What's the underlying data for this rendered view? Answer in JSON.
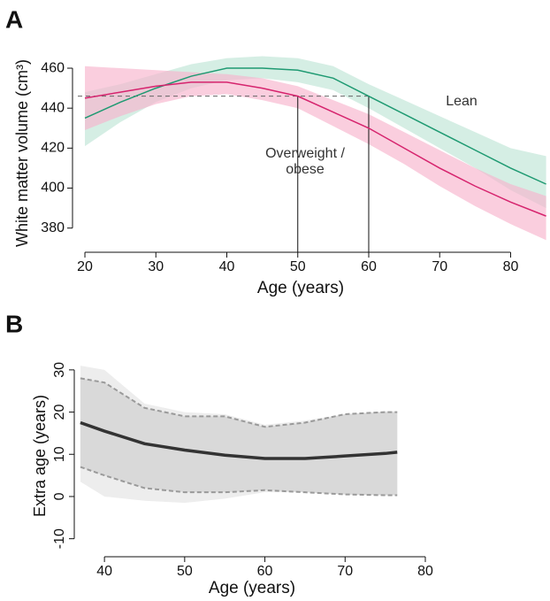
{
  "chart_data": [
    {
      "type": "line",
      "label": "A",
      "xlabel": "Age (years)",
      "ylabel": "White matter volume (cm³)",
      "xlim": [
        19,
        85.3
      ],
      "ylim": [
        371,
        464
      ],
      "xticks": [
        20,
        30,
        40,
        50,
        60,
        70,
        80
      ],
      "yticks": [
        380,
        400,
        420,
        440,
        460
      ],
      "x": [
        20,
        25,
        30,
        35,
        40,
        45,
        50,
        55,
        60,
        65,
        70,
        75,
        80,
        85
      ],
      "series": [
        {
          "name": "Lean",
          "color": "#1f9a72",
          "values": [
            435,
            443,
            450,
            456,
            460,
            460,
            459,
            455,
            446,
            437,
            428,
            419,
            410,
            402
          ],
          "bands": [
            {
              "color": "#bfe5d6",
              "lower": [
                421,
                433,
                443,
                450,
                454,
                455,
                453,
                449,
                440,
                430,
                420,
                410,
                399,
                390
              ],
              "upper": [
                448,
                452,
                457,
                462,
                465,
                466,
                465,
                461,
                452,
                444,
                436,
                428,
                420,
                416
              ]
            }
          ]
        },
        {
          "name": "Overweight / obese",
          "color": "#d6246e",
          "values": [
            445,
            448,
            451,
            453,
            453,
            450,
            446,
            438,
            430,
            420,
            410,
            401,
            393,
            386
          ],
          "bands": [
            {
              "color": "#f7b3cc",
              "lower": [
                429,
                436,
                442,
                446,
                447,
                444,
                440,
                431,
                422,
                412,
                401,
                391,
                382,
                374
              ],
              "upper": [
                461,
                460,
                459,
                458,
                457,
                455,
                451,
                444,
                437,
                428,
                419,
                410,
                402,
                396
              ]
            }
          ]
        }
      ],
      "reference": {
        "y": 446,
        "x": [
          50,
          60
        ]
      }
    },
    {
      "type": "line",
      "label": "B",
      "xlabel": "Age (years)",
      "ylabel": "Extra age (years)",
      "xlim": [
        36.9,
        80
      ],
      "ylim": [
        -12.8,
        32.7
      ],
      "xticks": [
        40,
        50,
        60,
        70,
        80
      ],
      "yticks": [
        -10,
        0,
        10,
        20,
        30
      ],
      "x": [
        37,
        40,
        45,
        50,
        55,
        60,
        65,
        70,
        75,
        76.5
      ],
      "series": [
        {
          "color": "#333333",
          "values": [
            17.5,
            15.5,
            12.5,
            11,
            9.8,
            9,
            9,
            9.6,
            10.2,
            10.5
          ],
          "bands": [
            {
              "color": "#ededed",
              "lower": [
                3.5,
                0,
                -1,
                -1.5,
                -0.5,
                1,
                1,
                0.5,
                0.3,
                0.3
              ],
              "upper": [
                31,
                30,
                22,
                20,
                19.5,
                17,
                18,
                19.5,
                20.2,
                20.2
              ]
            },
            {
              "color": "#d9d9d9",
              "border": "#9a9a9a",
              "lower": [
                7,
                5,
                2,
                1,
                1,
                1.5,
                1,
                0.5,
                0.3,
                0.3
              ],
              "upper": [
                28,
                27,
                21,
                19,
                19,
                16.5,
                17.5,
                19.5,
                20,
                20
              ]
            }
          ]
        }
      ]
    }
  ]
}
